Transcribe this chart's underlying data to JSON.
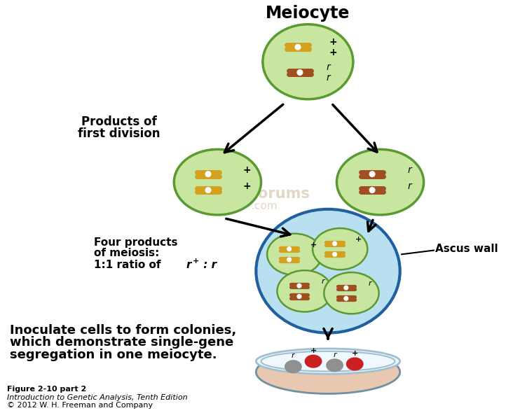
{
  "title": "Meiocyte",
  "bg_color": "#ffffff",
  "cell_green_light": "#c8e6a0",
  "cell_border": "#5a9a30",
  "ascus_blue": "#b8e0f0",
  "ascus_border": "#2060a0",
  "chrom_plus_color": "#d4a020",
  "chrom_r_color": "#a05020",
  "petri_fill": "#e8c8b0",
  "petri_border": "#7090a0",
  "petri_rim": "#a0c0d0",
  "arrow_color": "#000000",
  "label_products_first_line1": "Products of",
  "label_products_first_line2": "first division",
  "label_four_line1": "Four products",
  "label_four_line2": "of meiosis:",
  "label_four_ratio_prefix": "1:1 ratio of ",
  "label_ascus": "Ascus wall",
  "label_inoculate_line1": "Inoculate cells to form colonies,",
  "label_inoculate_line2": "which demonstrate single-gene",
  "label_inoculate_line3": "segregation in one meiocyte.",
  "caption_bold": "Figure 2-10 part 2",
  "caption_italic": "Introduction to Genetic Analysis, Tenth Edition",
  "caption_normal": "© 2012 W. H. Freeman and Company"
}
